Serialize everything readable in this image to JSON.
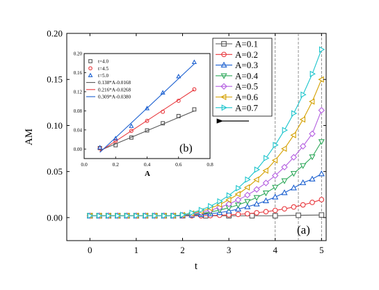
{
  "chart_data": [
    {
      "type": "line",
      "panel_label": "(a)",
      "xlabel": "t",
      "ylabel": "AM",
      "xlim": [
        -0.5,
        5.1
      ],
      "ylim": [
        -0.025,
        0.2
      ],
      "xticks": [
        0,
        1,
        2,
        3,
        4,
        5
      ],
      "yticks": [
        0.0,
        0.05,
        0.1,
        0.15,
        0.2
      ],
      "ytick_labels": [
        "0.00",
        "0.05",
        "0.10",
        "0.15",
        "0.20"
      ],
      "legend_position": "top-right",
      "vertical_reference_lines_x": [
        4.0,
        4.5,
        5.0
      ],
      "arrow": "left-pointing arrow below the legend",
      "x": [
        0,
        0.2,
        0.4,
        0.6,
        0.8,
        1.0,
        1.2,
        1.4,
        1.6,
        1.8,
        2.0,
        2.2,
        2.4,
        2.6,
        2.8,
        3.0,
        3.2,
        3.4,
        3.6,
        3.8,
        4.0,
        4.2,
        4.4,
        4.6,
        4.8,
        5.0
      ],
      "series": [
        {
          "name": "A=0.1",
          "color": "#555555",
          "marker": "square",
          "x": [
            0,
            0.2,
            0.4,
            0.6,
            0.8,
            1.0,
            1.2,
            1.4,
            1.6,
            1.8,
            2.0,
            2.5,
            3.0,
            3.5,
            4.0,
            4.5,
            5.0
          ],
          "values": [
            0.002,
            0.002,
            0.002,
            0.002,
            0.002,
            0.002,
            0.002,
            0.002,
            0.002,
            0.002,
            0.002,
            0.002,
            0.002,
            0.002,
            0.002,
            0.0025,
            0.0028
          ]
        },
        {
          "name": "A=0.2",
          "color": "#e8373c",
          "marker": "circle",
          "values": [
            0.002,
            0.002,
            0.002,
            0.002,
            0.002,
            0.002,
            0.002,
            0.002,
            0.002,
            0.002,
            0.002,
            0.002,
            0.002,
            0.0022,
            0.0025,
            0.003,
            0.0035,
            0.0042,
            0.0052,
            0.0064,
            0.0078,
            0.0095,
            0.0115,
            0.0138,
            0.0165,
            0.0195
          ]
        },
        {
          "name": "A=0.3",
          "color": "#1a5fd0",
          "marker": "triangle-up",
          "values": [
            0.002,
            0.002,
            0.002,
            0.002,
            0.002,
            0.002,
            0.002,
            0.002,
            0.002,
            0.002,
            0.0022,
            0.0026,
            0.0032,
            0.0041,
            0.0054,
            0.0071,
            0.0092,
            0.0117,
            0.0147,
            0.0182,
            0.0223,
            0.027,
            0.0322,
            0.0378,
            0.0418,
            0.0475
          ]
        },
        {
          "name": "A=0.4",
          "color": "#2ea85a",
          "marker": "triangle-down",
          "values": [
            0.002,
            0.002,
            0.002,
            0.002,
            0.002,
            0.002,
            0.002,
            0.002,
            0.002,
            0.002,
            0.0024,
            0.0032,
            0.0044,
            0.006,
            0.0081,
            0.0107,
            0.0138,
            0.0175,
            0.0218,
            0.0268,
            0.033,
            0.04,
            0.048,
            0.0565,
            0.066,
            0.0825
          ]
        },
        {
          "name": "A=0.5",
          "color": "#b460e0",
          "marker": "diamond",
          "values": [
            0.002,
            0.002,
            0.002,
            0.002,
            0.002,
            0.002,
            0.002,
            0.002,
            0.002,
            0.002,
            0.0026,
            0.0038,
            0.0056,
            0.008,
            0.011,
            0.0147,
            0.0192,
            0.0245,
            0.0306,
            0.0376,
            0.0456,
            0.0548,
            0.0655,
            0.0775,
            0.091,
            0.1165
          ]
        },
        {
          "name": "A=0.6",
          "color": "#d4a000",
          "marker": "triangle-left",
          "values": [
            0.002,
            0.002,
            0.002,
            0.002,
            0.002,
            0.002,
            0.002,
            0.002,
            0.002,
            0.002,
            0.0028,
            0.0045,
            0.0069,
            0.0101,
            0.0142,
            0.0193,
            0.0255,
            0.0328,
            0.0413,
            0.051,
            0.0622,
            0.0748,
            0.0895,
            0.1065,
            0.126,
            0.15
          ]
        },
        {
          "name": "A=0.7",
          "color": "#1ac4cc",
          "marker": "triangle-right",
          "values": [
            0.002,
            0.002,
            0.002,
            0.002,
            0.002,
            0.002,
            0.002,
            0.002,
            0.002,
            0.002,
            0.003,
            0.0052,
            0.0083,
            0.0124,
            0.0176,
            0.0241,
            0.032,
            0.0413,
            0.0521,
            0.0646,
            0.0788,
            0.095,
            0.1132,
            0.1335,
            0.156,
            0.1825
          ]
        }
      ]
    },
    {
      "type": "scatter",
      "panel_label": "(b)",
      "xlabel": "A",
      "ylabel": "",
      "xlim": [
        0.0,
        0.8
      ],
      "ylim": [
        -0.02,
        0.2
      ],
      "xticks": [
        0.0,
        0.2,
        0.4,
        0.6,
        0.8
      ],
      "xtick_labels": [
        "0.0",
        "0.2",
        "0.4",
        "0.6",
        "0.8"
      ],
      "yticks": [
        0.0,
        0.04,
        0.08,
        0.12,
        0.16,
        0.2
      ],
      "ytick_labels": [
        "0.00",
        "0.04",
        "0.08",
        "0.12",
        "0.16",
        "0.20"
      ],
      "legend_position": "top-left",
      "x": [
        0.1,
        0.2,
        0.3,
        0.4,
        0.5,
        0.6,
        0.7
      ],
      "series": [
        {
          "name": "t=4.0",
          "color": "#555555",
          "marker": "square",
          "values": [
            0.002,
            0.008,
            0.024,
            0.039,
            0.054,
            0.069,
            0.083
          ]
        },
        {
          "name": "t=4.5",
          "color": "#e8373c",
          "marker": "circle",
          "values": [
            0.002,
            0.017,
            0.038,
            0.059,
            0.078,
            0.101,
            0.125
          ]
        },
        {
          "name": "t=5.0",
          "color": "#1a5fd0",
          "marker": "triangle-up",
          "values": [
            0.003,
            0.022,
            0.048,
            0.085,
            0.118,
            0.152,
            0.182
          ]
        }
      ],
      "fits": [
        {
          "name": "0.138*A-0.0168",
          "color": "#555555",
          "slope": 0.138,
          "intercept": -0.0168
        },
        {
          "name": "0.216*A-0.0268",
          "color": "#e8373c",
          "slope": 0.216,
          "intercept": -0.0268
        },
        {
          "name": "0.309*A-0.0380",
          "color": "#1a5fd0",
          "slope": 0.309,
          "intercept": -0.038
        }
      ]
    }
  ]
}
